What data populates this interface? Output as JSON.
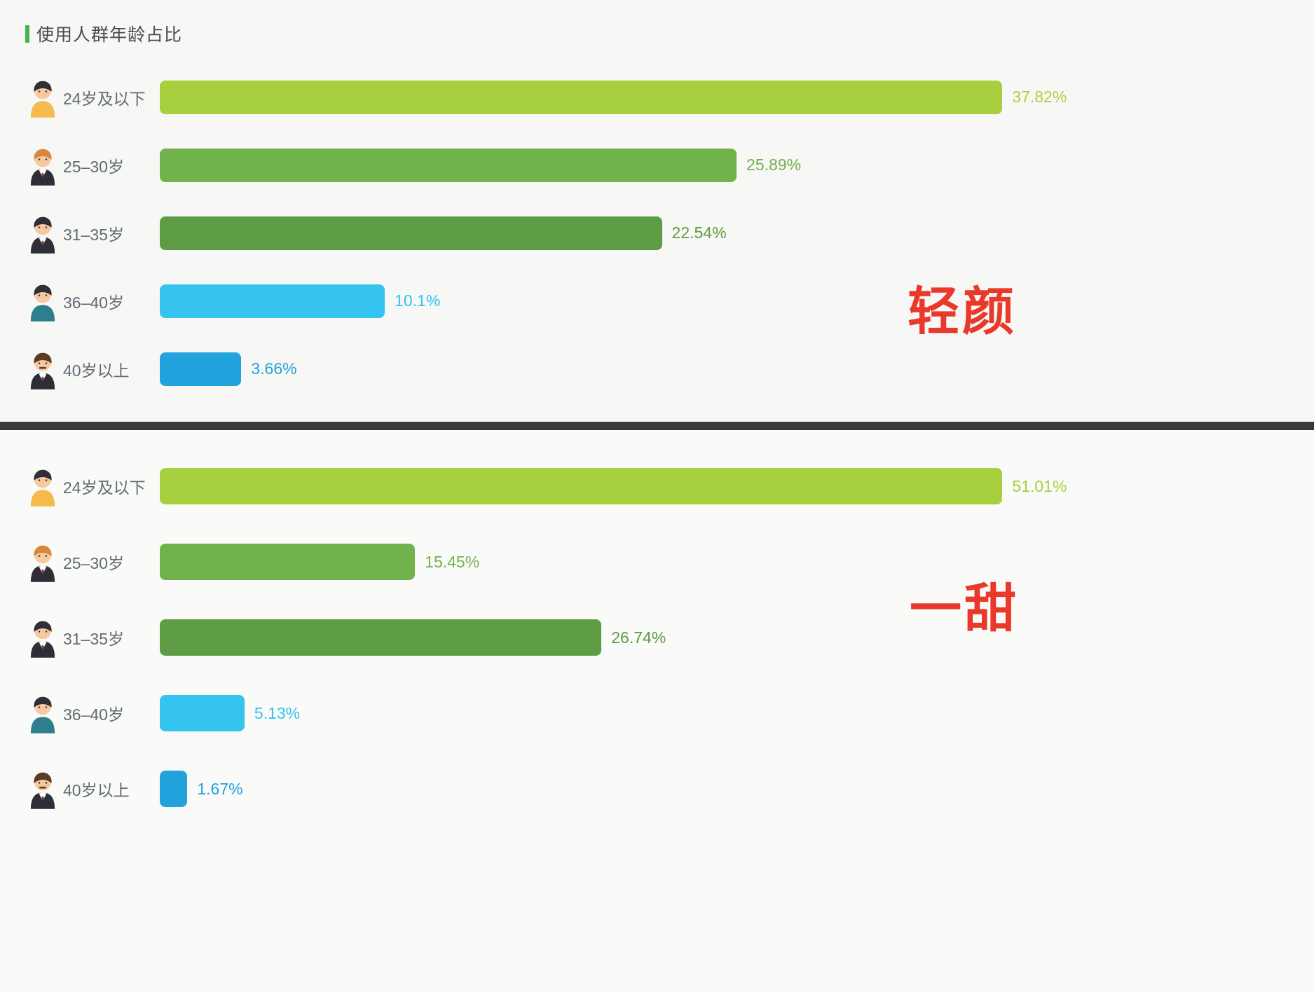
{
  "title": "使用人群年龄占比",
  "annotations": {
    "top_label": "轻颜",
    "bottom_label": "一甜",
    "color": "#e8392b"
  },
  "avatars": [
    {
      "skin": "#f6c9a0",
      "hair": "#2f2f35",
      "shirt": "#f5b94d",
      "suit": false,
      "mustache": false
    },
    {
      "skin": "#f6c9a0",
      "hair": "#d8883c",
      "shirt": "#2e2e38",
      "suit": true,
      "mustache": false
    },
    {
      "skin": "#f6c9a0",
      "hair": "#2f2f35",
      "shirt": "#2e2e38",
      "suit": true,
      "mustache": false
    },
    {
      "skin": "#f6c9a0",
      "hair": "#2f2f35",
      "shirt": "#2e7f8e",
      "suit": false,
      "mustache": false
    },
    {
      "skin": "#f6c9a0",
      "hair": "#5b3b22",
      "shirt": "#2e2e38",
      "suit": true,
      "mustache": true
    }
  ],
  "charts": [
    {
      "name": "轻颜",
      "rows": [
        {
          "label": "24岁及以下",
          "value": 37.82,
          "display": "37.82%",
          "color": "#a8cf3d"
        },
        {
          "label": "25–30岁",
          "value": 25.89,
          "display": "25.89%",
          "color": "#72b24c"
        },
        {
          "label": "31–35岁",
          "value": 22.54,
          "display": "22.54%",
          "color": "#5d9c44"
        },
        {
          "label": "36–40岁",
          "value": 10.1,
          "display": "10.1%",
          "color": "#35c3f0"
        },
        {
          "label": "40岁以上",
          "value": 3.66,
          "display": "3.66%",
          "color": "#22a3dd"
        }
      ]
    },
    {
      "name": "一甜",
      "rows": [
        {
          "label": "24岁及以下",
          "value": 51.01,
          "display": "51.01%",
          "color": "#a8cf3d"
        },
        {
          "label": "25–30岁",
          "value": 15.45,
          "display": "15.45%",
          "color": "#72b24c"
        },
        {
          "label": "31–35岁",
          "value": 26.74,
          "display": "26.74%",
          "color": "#5d9c44"
        },
        {
          "label": "36–40岁",
          "value": 5.13,
          "display": "5.13%",
          "color": "#35c3f0"
        },
        {
          "label": "40岁以上",
          "value": 1.67,
          "display": "1.67%",
          "color": "#22a3dd"
        }
      ]
    }
  ],
  "chart_data": [
    {
      "type": "bar",
      "orientation": "horizontal",
      "title": "使用人群年龄占比",
      "series_name": "轻颜",
      "categories": [
        "24岁及以下",
        "25–30岁",
        "31–35岁",
        "36–40岁",
        "40岁以上"
      ],
      "values": [
        37.82,
        25.89,
        22.54,
        10.1,
        3.66
      ],
      "value_labels": [
        "37.82%",
        "25.89%",
        "22.54%",
        "10.1%",
        "3.66%"
      ],
      "bar_colors": [
        "#a8cf3d",
        "#72b24c",
        "#5d9c44",
        "#35c3f0",
        "#22a3dd"
      ],
      "xlim": [
        0,
        52
      ],
      "grid": false,
      "legend": false
    },
    {
      "type": "bar",
      "orientation": "horizontal",
      "title": "",
      "series_name": "一甜",
      "categories": [
        "24岁及以下",
        "25–30岁",
        "31–35岁",
        "36–40岁",
        "40岁以上"
      ],
      "values": [
        51.01,
        15.45,
        26.74,
        5.13,
        1.67
      ],
      "value_labels": [
        "51.01%",
        "15.45%",
        "26.74%",
        "5.13%",
        "1.67%"
      ],
      "bar_colors": [
        "#a8cf3d",
        "#72b24c",
        "#5d9c44",
        "#35c3f0",
        "#22a3dd"
      ],
      "xlim": [
        0,
        52
      ],
      "grid": false,
      "legend": false
    }
  ]
}
